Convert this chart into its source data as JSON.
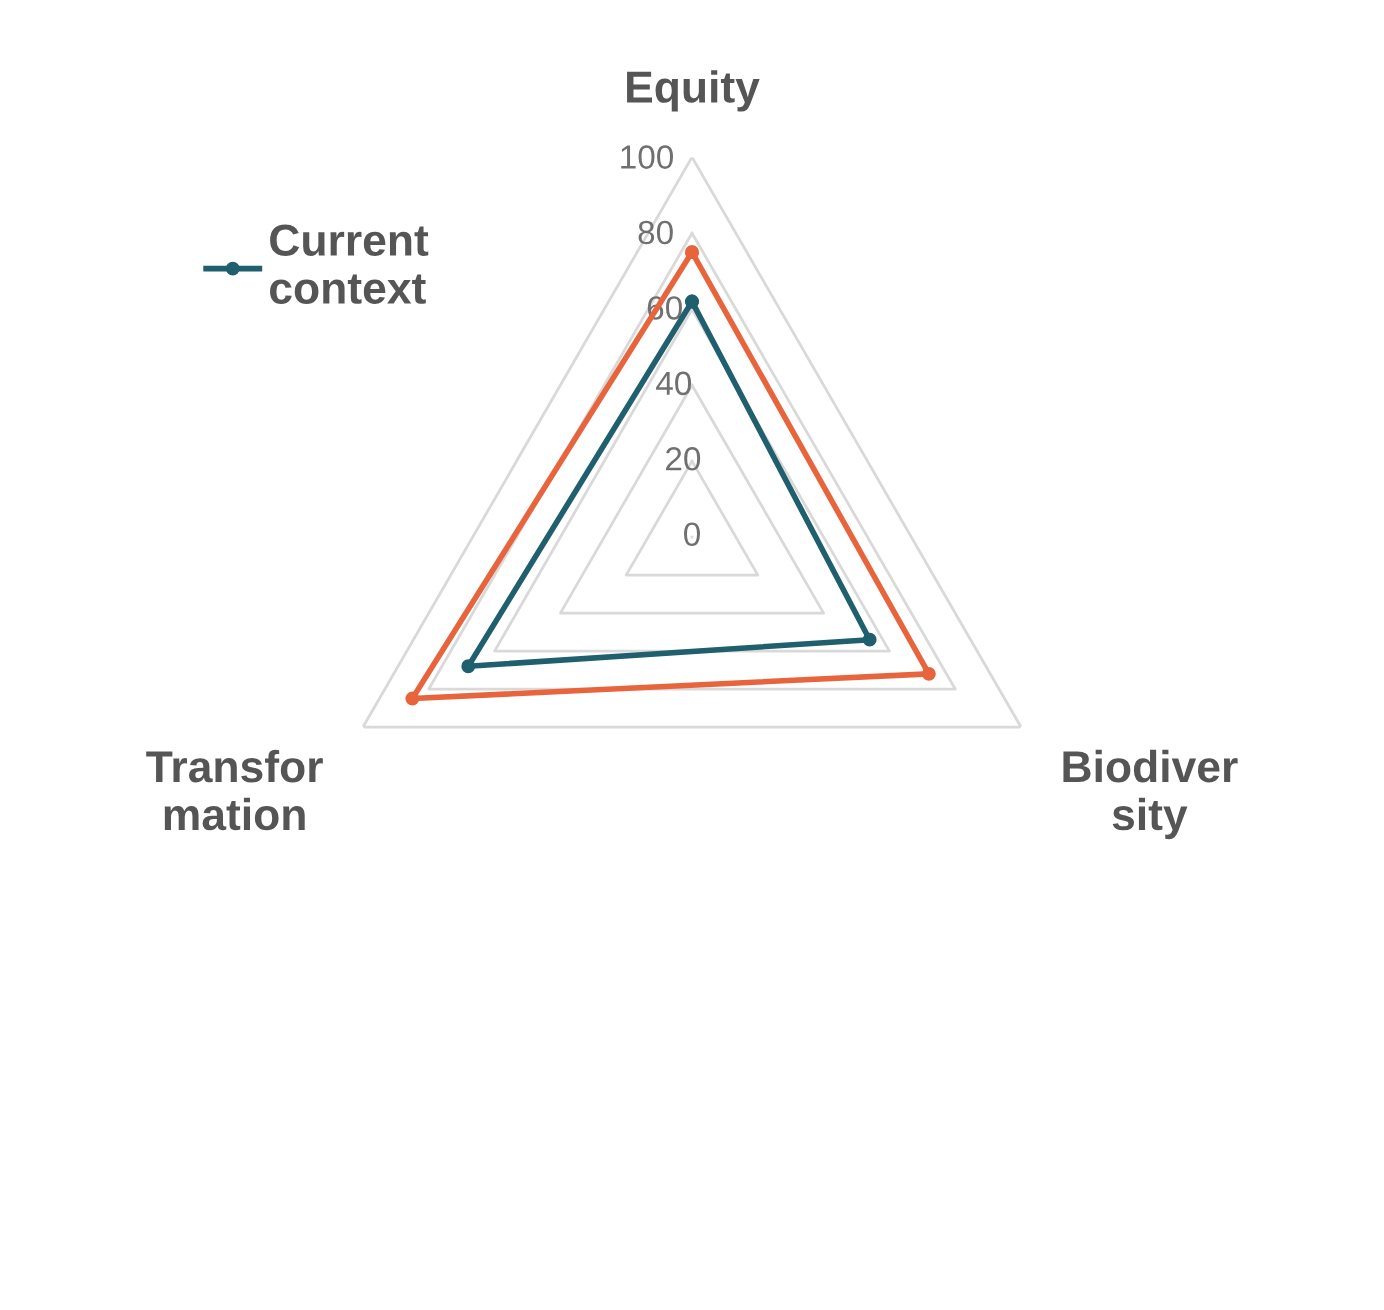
{
  "chart_data": {
    "type": "radar",
    "categories": [
      "Equity",
      "Biodiver\nsity",
      "Transfor\nmation"
    ],
    "series": [
      {
        "name": "Current context",
        "color": "#1f5f6e",
        "values": [
          62,
          54,
          68
        ]
      },
      {
        "color": "#e8643c",
        "values": [
          75,
          72,
          85
        ]
      }
    ],
    "ylim": [
      0,
      100
    ],
    "yticks": [
      0,
      20,
      40,
      60,
      80,
      100
    ],
    "grid": true,
    "legend": "top left",
    "marker": "circle",
    "line_style": "solid"
  }
}
